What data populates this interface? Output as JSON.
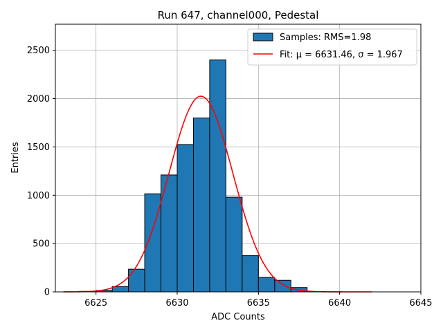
{
  "chart_data": {
    "type": "bar",
    "title": "Run 647, channel000, Pedestal",
    "xlabel": "ADC Counts",
    "ylabel": "Entries",
    "xlim": [
      6622.5,
      6645
    ],
    "ylim": [
      0,
      2770
    ],
    "xticks": [
      6625,
      6630,
      6635,
      6640,
      6645
    ],
    "yticks": [
      0,
      500,
      1000,
      1500,
      2000,
      2500
    ],
    "xtick_labels": [
      "6625",
      "6630",
      "6635",
      "6640",
      "6645"
    ],
    "ytick_labels": [
      "0",
      "500",
      "1000",
      "1500",
      "2000",
      "2500"
    ],
    "grid": true,
    "legend_position": "top-right",
    "histogram": {
      "name": "Samples: RMS=1.98",
      "color": "#1f77b4",
      "edge_color": "#000000",
      "bins": [
        {
          "x0": 6623,
          "x1": 6624,
          "count": 0
        },
        {
          "x0": 6624,
          "x1": 6625,
          "count": 5
        },
        {
          "x0": 6625,
          "x1": 6626,
          "count": 15
        },
        {
          "x0": 6626,
          "x1": 6627,
          "count": 55
        },
        {
          "x0": 6627,
          "x1": 6628,
          "count": 235
        },
        {
          "x0": 6628,
          "x1": 6629,
          "count": 1015
        },
        {
          "x0": 6629,
          "x1": 6630,
          "count": 1210
        },
        {
          "x0": 6630,
          "x1": 6631,
          "count": 1525
        },
        {
          "x0": 6631,
          "x1": 6632,
          "count": 1800
        },
        {
          "x0": 6632,
          "x1": 6633,
          "count": 2400
        },
        {
          "x0": 6633,
          "x1": 6634,
          "count": 980
        },
        {
          "x0": 6634,
          "x1": 6635,
          "count": 375
        },
        {
          "x0": 6635,
          "x1": 6636,
          "count": 150
        },
        {
          "x0": 6636,
          "x1": 6637,
          "count": 120
        },
        {
          "x0": 6637,
          "x1": 6638,
          "count": 45
        }
      ]
    },
    "fit": {
      "name": "Fit: μ = 6631.46, σ = 1.967",
      "color": "#ff0000",
      "mean": 6631.46,
      "sigma": 1.967,
      "amplitude": 2025,
      "x_range": [
        6623,
        6642
      ]
    }
  }
}
